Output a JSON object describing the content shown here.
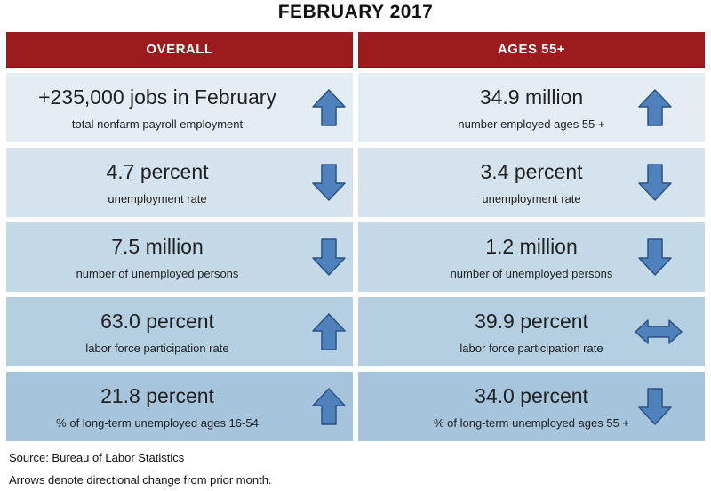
{
  "title": "FEBRUARY 2017",
  "colors": {
    "header_bg": "#9b1b1f",
    "arrow_fill": "#4f81bd",
    "arrow_stroke": "#2c5382",
    "row_bgs": [
      "#e4edf4",
      "#d4e3ee",
      "#c4d9e8",
      "#b4cee2",
      "#a6c4dc"
    ]
  },
  "columns": {
    "overall": "OVERALL",
    "ages55": "AGES 55+"
  },
  "rows": [
    {
      "overall": {
        "value": "+235,000 jobs in February",
        "label": "total nonfarm payroll employment",
        "arrow": "up-arrow-icon"
      },
      "ages55": {
        "value": "34.9 million",
        "label": "number employed ages 55 +",
        "arrow": "up-arrow-icon"
      }
    },
    {
      "overall": {
        "value": "4.7 percent",
        "label": "unemployment rate",
        "arrow": "down-arrow-icon"
      },
      "ages55": {
        "value": "3.4 percent",
        "label": "unemployment rate",
        "arrow": "down-arrow-icon"
      }
    },
    {
      "overall": {
        "value": "7.5 million",
        "label": "number of unemployed persons",
        "arrow": "down-arrow-icon"
      },
      "ages55": {
        "value": "1.2 million",
        "label": "number of unemployed persons",
        "arrow": "down-arrow-icon"
      }
    },
    {
      "overall": {
        "value": "63.0 percent",
        "label": "labor force participation rate",
        "arrow": "up-arrow-icon"
      },
      "ages55": {
        "value": "39.9 percent",
        "label": "labor force participation rate",
        "arrow": "left-right-arrow-icon"
      }
    },
    {
      "overall": {
        "value": "21.8 percent",
        "label": "% of long-term unemployed ages 16-54",
        "arrow": "up-arrow-icon"
      },
      "ages55": {
        "value": "34.0 percent",
        "label": "% of long-term unemployed ages 55 +",
        "arrow": "down-arrow-icon"
      }
    }
  ],
  "footer": {
    "source": "Source: Bureau of Labor Statistics",
    "note": "Arrows denote directional change from prior month."
  }
}
